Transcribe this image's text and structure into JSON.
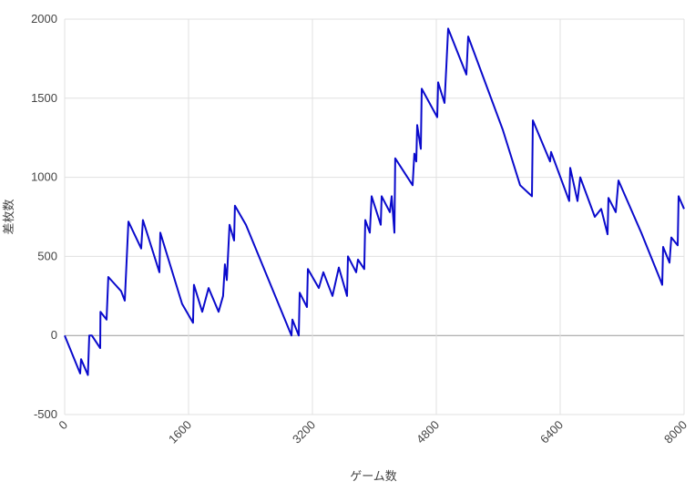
{
  "chart_data": {
    "type": "line",
    "x_label": "ゲーム数",
    "y_label": "差枚数",
    "x": [
      0,
      200,
      212,
      300,
      318,
      350,
      459,
      462,
      541,
      564,
      729,
      776,
      823,
      988,
      1011,
      1223,
      1235,
      1517,
      1658,
      1670,
      1776,
      1859,
      1988,
      2046,
      2070,
      2094,
      2129,
      2188,
      2199,
      2341,
      2929,
      2941,
      3023,
      3035,
      3129,
      3141,
      3282,
      3341,
      3459,
      3541,
      3647,
      3659,
      3765,
      3788,
      3870,
      3882,
      3941,
      3965,
      4082,
      4094,
      4200,
      4223,
      4259,
      4270,
      4494,
      4517,
      4541,
      4553,
      4600,
      4612,
      4812,
      4823,
      4906,
      4929,
      4953,
      5188,
      5212,
      5659,
      5882,
      6035,
      6047,
      6270,
      6282,
      6517,
      6529,
      6624,
      6659,
      6847,
      6929,
      7012,
      7023,
      7118,
      7153,
      7447,
      7694,
      7718,
      7729,
      7812,
      7835,
      7918,
      7929,
      8000
    ],
    "series": [
      {
        "color": "#0a0acc",
        "values": [
          0,
          -240,
          -150,
          -250,
          0,
          0,
          -80,
          150,
          100,
          370,
          280,
          220,
          720,
          550,
          730,
          400,
          650,
          200,
          80,
          320,
          150,
          300,
          150,
          250,
          450,
          350,
          700,
          600,
          820,
          700,
          0,
          100,
          0,
          270,
          180,
          420,
          300,
          400,
          250,
          430,
          250,
          500,
          400,
          480,
          420,
          730,
          650,
          880,
          700,
          880,
          780,
          880,
          650,
          1120,
          950,
          1150,
          1100,
          1330,
          1180,
          1560,
          1380,
          1600,
          1470,
          1700,
          1940,
          1650,
          1890,
          1300,
          950,
          880,
          1360,
          1100,
          1160,
          850,
          1060,
          850,
          1000,
          750,
          800,
          640,
          870,
          780,
          980,
          650,
          350,
          320,
          560,
          460,
          620,
          570,
          880,
          800
        ]
      }
    ],
    "xlim": [
      0,
      8000
    ],
    "xticks": [
      0,
      1600,
      3200,
      4800,
      6400,
      8000
    ],
    "ylim": [
      -500,
      2000
    ],
    "yticks": [
      -500,
      0,
      500,
      1000,
      1500,
      2000
    ],
    "grid": true
  }
}
